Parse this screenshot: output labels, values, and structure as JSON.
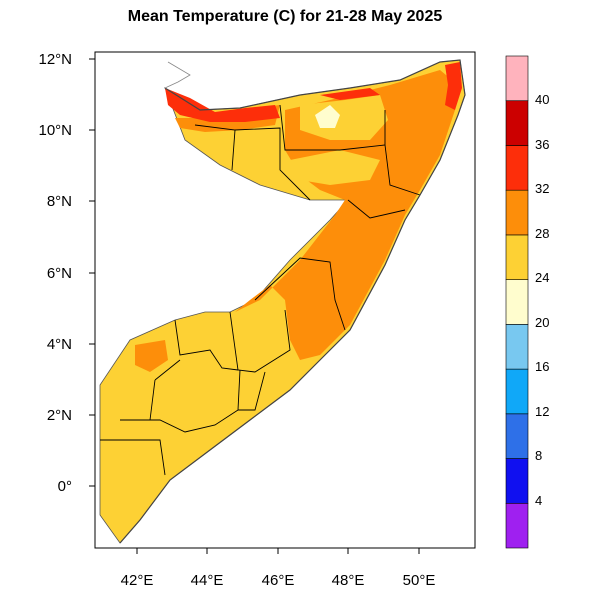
{
  "title": "Mean Temperature (C) for 21-28 May 2025",
  "map": {
    "lon_labels": [
      "42°E",
      "44°E",
      "46°E",
      "48°E",
      "50°E"
    ],
    "lat_labels": [
      "12°N",
      "10°N",
      "8°N",
      "6°N",
      "4°N",
      "2°N",
      "0°"
    ],
    "region_colors": {
      "t24_28": "#fdd134",
      "t28_32": "#fd8e0a",
      "t32_36": "#fd2e0a",
      "t20_24": "#fffdce",
      "boundary": "#000000"
    }
  },
  "colorbar": {
    "labels": [
      "40",
      "36",
      "32",
      "28",
      "24",
      "20",
      "16",
      "12",
      "8",
      "4"
    ],
    "colors": [
      "#9f20f0",
      "#1010f0",
      "#2e70e8",
      "#10a8f8",
      "#78c8f0",
      "#fffdce",
      "#fdd134",
      "#fd8e0a",
      "#fd2e0a",
      "#cc0000",
      "#ffb3bd"
    ]
  }
}
